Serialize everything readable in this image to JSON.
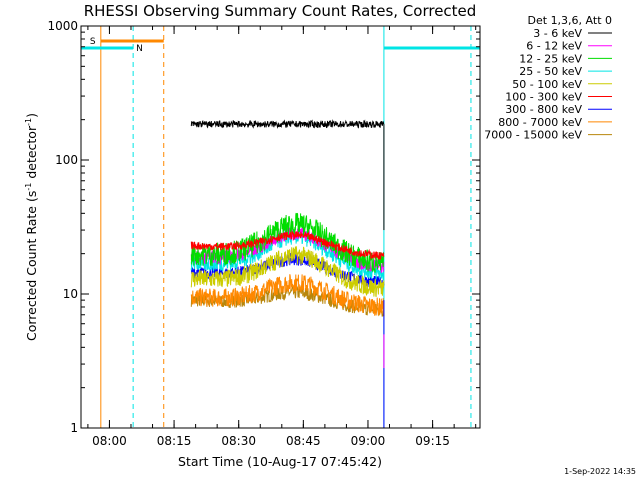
{
  "chart_data": {
    "type": "line",
    "title": "RHESSI Observing Summary Count Rates, Corrected",
    "xlabel": "Start Time (10-Aug-17 07:45:42)",
    "ylabel_prefix": "Corrected Count Rate (s",
    "ylabel_sup1": "-1",
    "ylabel_mid": " detector",
    "ylabel_sup2": "-1",
    "ylabel_suffix": ")",
    "yscale": "log",
    "ylim": [
      1,
      1000
    ],
    "xlim_minutes": [
      7.7,
      100.3
    ],
    "x_unit": "minutes after 07:45:42",
    "x_ticks": [
      {
        "label": "08:00",
        "t": 14.3
      },
      {
        "label": "08:15",
        "t": 29.3
      },
      {
        "label": "08:30",
        "t": 44.3
      },
      {
        "label": "08:45",
        "t": 59.3
      },
      {
        "label": "09:00",
        "t": 74.3
      },
      {
        "label": "09:15",
        "t": 89.3
      }
    ],
    "y_ticks": [
      {
        "label": "1",
        "v": 1
      },
      {
        "label": "10",
        "v": 10
      },
      {
        "label": "100",
        "v": 100
      },
      {
        "label": "1000",
        "v": 1000
      }
    ],
    "legend_header": "Det 1,3,6, Att 0",
    "legend_placement": "right",
    "series": [
      {
        "name": "3 - 6 keV",
        "color": "#000000",
        "level": 185,
        "bump": 0.0,
        "noise": 0.025
      },
      {
        "name": "6 - 12 keV",
        "color": "#ff00ff",
        "level": 19,
        "bump": 0.22,
        "noise": 0.05
      },
      {
        "name": "12 - 25 keV",
        "color": "#00dd00",
        "level": 20,
        "bump": 0.26,
        "noise": 0.09
      },
      {
        "name": "25 - 50 keV",
        "color": "#00e5e5",
        "level": 17,
        "bump": 0.24,
        "noise": 0.06
      },
      {
        "name": "50 - 100 keV",
        "color": "#cccc00",
        "level": 13,
        "bump": 0.22,
        "noise": 0.07
      },
      {
        "name": "100 - 300 keV",
        "color": "#ff0000",
        "level": 23,
        "bump": 0.12,
        "noise": 0.03
      },
      {
        "name": "300 - 800 keV",
        "color": "#0000ff",
        "level": 14.5,
        "bump": 0.14,
        "noise": 0.045
      },
      {
        "name": "800 - 7000 keV",
        "color": "#ff8800",
        "level": 9.5,
        "bump": 0.15,
        "noise": 0.07
      },
      {
        "name": "7000 - 15000 keV",
        "color": "#b8860b",
        "level": 9,
        "bump": 0.1,
        "noise": 0.05
      }
    ],
    "data_start_minutes": 33.3,
    "data_end_minutes": 78.0,
    "night_intervals_minutes": [
      [
        7.7,
        19.8
      ],
      [
        78.0,
        100.3
      ]
    ],
    "saa_marker_minutes": 12.3,
    "saa_band_minutes": [
      12.3,
      26.9
    ],
    "saa_label": "S",
    "night_label": "N",
    "dashed_cyan_minutes": [
      19.8,
      98.2
    ],
    "dashed_orange_minutes": [
      26.9
    ],
    "solid_cyan_minutes": [
      7.7,
      78.0
    ],
    "footer_date": "1-Sep-2022 14:35"
  }
}
